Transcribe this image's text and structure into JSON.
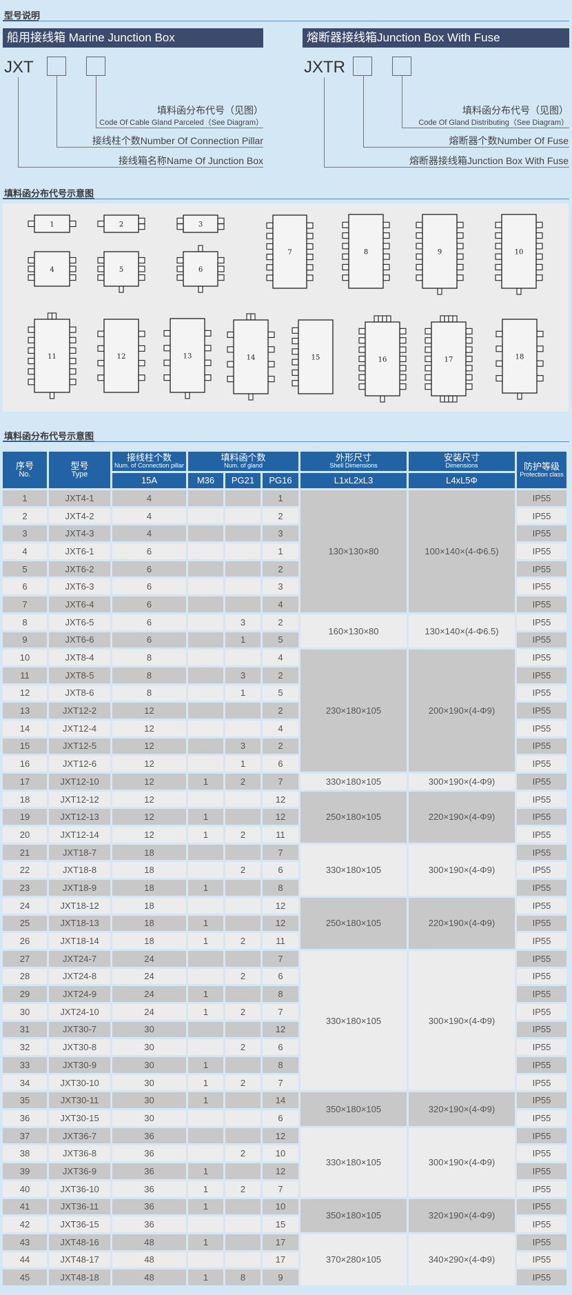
{
  "section1": {
    "title": "型号说明",
    "left": {
      "bar": "船用接线箱 Marine Junction Box",
      "code": "JXT",
      "label1_cn": "填料函分布代号（见图）",
      "label1_en": "Code Of Cable Gland Parceled（See Diagram）",
      "label2": "接线柱个数Number Of Connection Pillar",
      "label3": "接线箱名称Name Of Junction Box"
    },
    "right": {
      "bar": "熔断器接线箱Junction Box With Fuse",
      "code": "JXTR",
      "label1_cn": "填料函分布代号（见图）",
      "label1_en": "Code Of Gland Distributing（See Diagram）",
      "label2": "熔断器个数Number Of Fuse",
      "label3": "熔断器接线箱Junction Box With Fuse"
    }
  },
  "section2": {
    "title": "填料函分布代号示意图",
    "boxes": [
      {
        "label": "1",
        "left": 1,
        "right": 1,
        "top": 0,
        "bottom": 0
      },
      {
        "label": "2",
        "left": 1,
        "right": 2,
        "top": 0,
        "bottom": 0
      },
      {
        "label": "3",
        "left": 2,
        "right": 2,
        "top": 0,
        "bottom": 0
      },
      {
        "label": "4",
        "left": 3,
        "right": 3,
        "top": 0,
        "bottom": 0
      },
      {
        "label": "5",
        "left": 3,
        "right": 3,
        "top": 0,
        "bottom": 1
      },
      {
        "label": "6",
        "left": 3,
        "right": 3,
        "top": 1,
        "bottom": 1
      },
      {
        "label": "7",
        "left": 6,
        "right": 6,
        "top": 0,
        "bottom": 0
      },
      {
        "label": "8",
        "left": 6,
        "right": 6,
        "top": 0,
        "bottom": 0
      },
      {
        "label": "9",
        "left": 6,
        "right": 6,
        "top": 0,
        "bottom": 1
      },
      {
        "label": "10",
        "left": 6,
        "right": 6,
        "top": 0,
        "bottom": 1
      },
      {
        "label": "11",
        "left": 6,
        "right": 6,
        "top": 2,
        "bottom": 1
      },
      {
        "label": "12",
        "left": 4,
        "right": 4,
        "top": 0,
        "bottom": 0
      },
      {
        "label": "13",
        "left": 4,
        "right": 4,
        "top": 0,
        "bottom": 1
      },
      {
        "label": "14",
        "left": 4,
        "right": 4,
        "top": 2,
        "bottom": 1
      },
      {
        "label": "15",
        "left": 6,
        "right": 0,
        "top": 0,
        "bottom": 0
      },
      {
        "label": "16",
        "left": 7,
        "right": 7,
        "top": 4,
        "bottom": 1
      },
      {
        "label": "17",
        "left": 7,
        "right": 7,
        "top": 4,
        "bottom": 4
      },
      {
        "label": "18",
        "left": 4,
        "right": 4,
        "top": 0,
        "bottom": 1
      }
    ]
  },
  "section3": {
    "title": "填料函分布代号示意图",
    "header": {
      "no_cn": "序号",
      "no_en": "No.",
      "type_cn": "型号",
      "type_en": "Type",
      "pillar_cn": "接线柱个数",
      "pillar_en": "Num. of Connection pillar",
      "gland_cn": "填料函个数",
      "gland_en": "Num. of gland",
      "shell_cn": "外形尺寸",
      "shell_en": "Shell Dimensions",
      "dim_cn": "安装尺寸",
      "dim_en": "Dimensions",
      "prot_cn": "防护等级",
      "prot_en": "Protection class",
      "a15": "15A",
      "m36": "M36",
      "pg21": "PG21",
      "pg16": "PG16",
      "l123": "L1xL2xL3",
      "l45": "L4xL5Φ"
    },
    "rows": [
      [
        "1",
        "JXT4-1",
        "4",
        "",
        "",
        "1",
        "IP55"
      ],
      [
        "2",
        "JXT4-2",
        "4",
        "",
        "",
        "2",
        "IP55"
      ],
      [
        "3",
        "JXT4-3",
        "4",
        "",
        "",
        "3",
        "IP55"
      ],
      [
        "4",
        "JXT6-1",
        "6",
        "",
        "",
        "1",
        "IP55"
      ],
      [
        "5",
        "JXT6-2",
        "6",
        "",
        "",
        "2",
        "IP55"
      ],
      [
        "6",
        "JXT6-3",
        "6",
        "",
        "",
        "3",
        "IP55"
      ],
      [
        "7",
        "JXT6-4",
        "6",
        "",
        "",
        "4",
        "IP55"
      ],
      [
        "8",
        "JXT6-5",
        "6",
        "",
        "3",
        "2",
        "IP55"
      ],
      [
        "9",
        "JXT6-6",
        "6",
        "",
        "1",
        "5",
        "IP55"
      ],
      [
        "10",
        "JXT8-4",
        "8",
        "",
        "",
        "4",
        "IP55"
      ],
      [
        "11",
        "JXT8-5",
        "8",
        "",
        "3",
        "2",
        "IP55"
      ],
      [
        "12",
        "JXT8-6",
        "8",
        "",
        "1",
        "5",
        "IP55"
      ],
      [
        "13",
        "JXT12-2",
        "12",
        "",
        "",
        "2",
        "IP55"
      ],
      [
        "14",
        "JXT12-4",
        "12",
        "",
        "",
        "4",
        "IP55"
      ],
      [
        "15",
        "JXT12-5",
        "12",
        "",
        "3",
        "2",
        "IP55"
      ],
      [
        "16",
        "JXT12-6",
        "12",
        "",
        "1",
        "6",
        "IP55"
      ],
      [
        "17",
        "JXT12-10",
        "12",
        "1",
        "2",
        "7",
        "IP55"
      ],
      [
        "18",
        "JXT12-12",
        "12",
        "",
        "",
        "12",
        "IP55"
      ],
      [
        "19",
        "JXT12-13",
        "12",
        "1",
        "",
        "12",
        "IP55"
      ],
      [
        "20",
        "JXT12-14",
        "12",
        "1",
        "2",
        "11",
        "IP55"
      ],
      [
        "21",
        "JXT18-7",
        "18",
        "",
        "",
        "7",
        "IP55"
      ],
      [
        "22",
        "JXT18-8",
        "18",
        "",
        "2",
        "6",
        "IP55"
      ],
      [
        "23",
        "JXT18-9",
        "18",
        "1",
        "",
        "8",
        "IP55"
      ],
      [
        "24",
        "JXT18-12",
        "18",
        "",
        "",
        "12",
        "IP55"
      ],
      [
        "25",
        "JXT18-13",
        "18",
        "1",
        "",
        "12",
        "IP55"
      ],
      [
        "26",
        "JXT18-14",
        "18",
        "1",
        "2",
        "11",
        "IP55"
      ],
      [
        "27",
        "JXT24-7",
        "24",
        "",
        "",
        "7",
        "IP55"
      ],
      [
        "28",
        "JXT24-8",
        "24",
        "",
        "2",
        "6",
        "IP55"
      ],
      [
        "29",
        "JXT24-9",
        "24",
        "1",
        "",
        "8",
        "IP55"
      ],
      [
        "30",
        "JXT24-10",
        "24",
        "1",
        "2",
        "7",
        "IP55"
      ],
      [
        "31",
        "JXT30-7",
        "30",
        "",
        "",
        "12",
        "IP55"
      ],
      [
        "32",
        "JXT30-8",
        "30",
        "",
        "2",
        "6",
        "IP55"
      ],
      [
        "33",
        "JXT30-9",
        "30",
        "1",
        "",
        "8",
        "IP55"
      ],
      [
        "34",
        "JXT30-10",
        "30",
        "1",
        "2",
        "7",
        "IP55"
      ],
      [
        "35",
        "JXT30-11",
        "30",
        "1",
        "",
        "14",
        "IP55"
      ],
      [
        "36",
        "JXT30-15",
        "30",
        "",
        "",
        "6",
        "IP55"
      ],
      [
        "37",
        "JXT36-7",
        "36",
        "",
        "",
        "12",
        "IP55"
      ],
      [
        "38",
        "JXT36-8",
        "36",
        "",
        "2",
        "10",
        "IP55"
      ],
      [
        "39",
        "JXT36-9",
        "36",
        "1",
        "",
        "12",
        "IP55"
      ],
      [
        "40",
        "JXT36-10",
        "36",
        "1",
        "2",
        "7",
        "IP55"
      ],
      [
        "41",
        "JXT36-11",
        "36",
        "1",
        "",
        "10",
        "IP55"
      ],
      [
        "42",
        "JXT36-15",
        "36",
        "",
        "",
        "15",
        "IP55"
      ],
      [
        "43",
        "JXT48-16",
        "48",
        "1",
        "",
        "17",
        "IP55"
      ],
      [
        "44",
        "JXT48-17",
        "48",
        "",
        "",
        "17",
        "IP55"
      ],
      [
        "45",
        "JXT48-18",
        "48",
        "1",
        "8",
        "9",
        "IP55"
      ]
    ],
    "groups": [
      {
        "span": 7,
        "shell": "130×130×80",
        "dims": "100×140×(4-Φ6.5)"
      },
      {
        "span": 2,
        "shell": "160×130×80",
        "dims": "130×140×(4-Φ6.5)"
      },
      {
        "span": 7,
        "shell": "230×180×105",
        "dims": "200×190×(4-Φ9)"
      },
      {
        "span": 1,
        "shell": "330×180×105",
        "dims": "300×190×(4-Φ9)"
      },
      {
        "span": 3,
        "shell": "250×180×105",
        "dims": "220×190×(4-Φ9)"
      },
      {
        "span": 3,
        "shell": "330×180×105",
        "dims": "300×190×(4-Φ9)"
      },
      {
        "span": 3,
        "shell": "250×180×105",
        "dims": "220×190×(4-Φ9)"
      },
      {
        "span": 8,
        "shell": "330×180×105",
        "dims": "300×190×(4-Φ9)"
      },
      {
        "span": 2,
        "shell": "350×180×105",
        "dims": "320×190×(4-Φ9)"
      },
      {
        "span": 4,
        "shell": "330×180×105",
        "dims": "300×190×(4-Φ9)"
      },
      {
        "span": 2,
        "shell": "350×180×105",
        "dims": "320×190×(4-Φ9)"
      },
      {
        "span": 3,
        "shell": "370×280×105",
        "dims": "340×290×(4-Φ9)"
      }
    ]
  },
  "colors": {
    "background": "#d3e7f4",
    "bar": "#3c4a6d",
    "header": "#2263a6",
    "row_dark": "#c8c8c8",
    "row_light": "#ececec"
  }
}
